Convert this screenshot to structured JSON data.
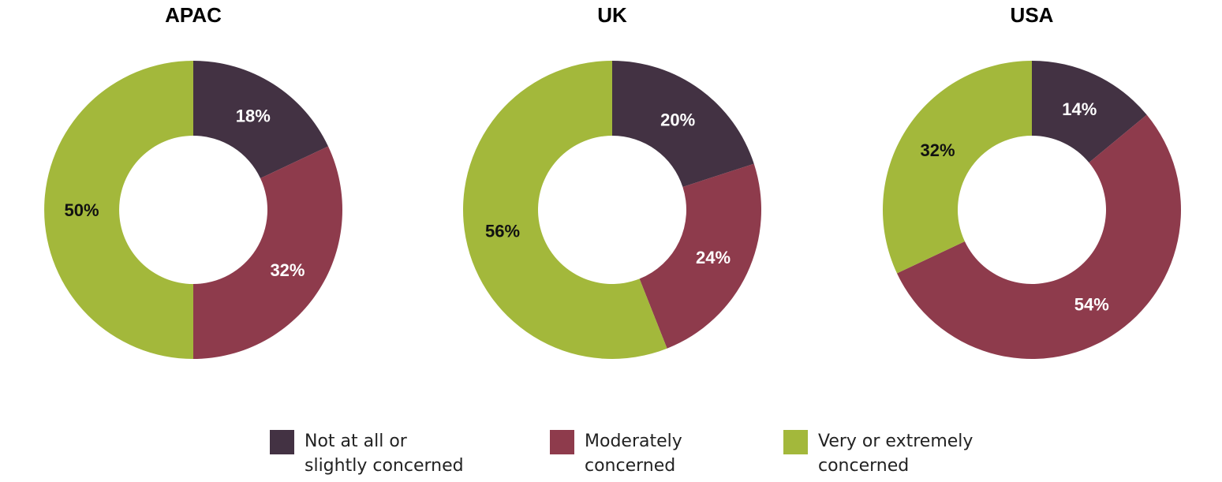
{
  "chart_data": [
    {
      "type": "pie",
      "title": "APAC",
      "categories": [
        "Not at all or slightly concerned",
        "Moderately concerned",
        "Very or extremely concerned"
      ],
      "values": [
        18,
        32,
        50
      ],
      "labels": [
        "18%",
        "32%",
        "50%"
      ]
    },
    {
      "type": "pie",
      "title": "UK",
      "categories": [
        "Not at all or slightly concerned",
        "Moderately concerned",
        "Very or extremely concerned"
      ],
      "values": [
        20,
        24,
        56
      ],
      "labels": [
        "20%",
        "24%",
        "56%"
      ]
    },
    {
      "type": "pie",
      "title": "USA",
      "categories": [
        "Not at all or slightly concerned",
        "Moderately concerned",
        "Very or extremely concerned"
      ],
      "values": [
        14,
        54,
        32
      ],
      "labels": [
        "14%",
        "54%",
        "32%"
      ]
    }
  ],
  "colors": {
    "not_concerned": "#433243",
    "moderately": "#8e3b4c",
    "very": "#a3b83b",
    "label_light": "#ffffff",
    "label_dark": "#111111"
  },
  "legend": {
    "items": [
      {
        "line1": "Not at all or",
        "line2": "slightly concerned",
        "color": "#433243"
      },
      {
        "line1": "Moderately",
        "line2": "concerned",
        "color": "#8e3b4c"
      },
      {
        "line1": "Very or extremely",
        "line2": "concerned",
        "color": "#a3b83b"
      }
    ]
  }
}
